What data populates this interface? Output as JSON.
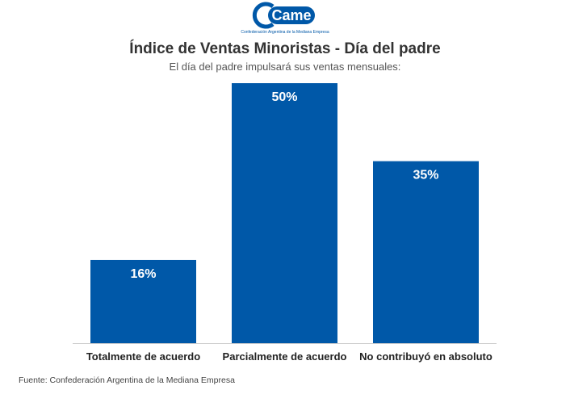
{
  "logo": {
    "wordmark": "Came",
    "tagline": "Confederación Argentina de la Mediana Empresa"
  },
  "colors": {
    "bar": "#0058A8",
    "logo": "#0058A8",
    "baseline": "#cccccc"
  },
  "chart_data": {
    "type": "bar",
    "title": "Índice de Ventas Minoristas - Día del padre",
    "subtitle": "El día del padre impulsará sus ventas mensuales:",
    "categories": [
      "Totalmente de acuerdo",
      "Parcialmente de acuerdo",
      "No contribuyó en absoluto"
    ],
    "values": [
      16,
      50,
      35
    ],
    "data_labels": [
      "16%",
      "50%",
      "35%"
    ],
    "ylim": [
      0,
      50
    ],
    "xlabel": "",
    "ylabel": "",
    "grid": false
  },
  "source": "Fuente: Confederación Argentina de la Mediana Empresa"
}
